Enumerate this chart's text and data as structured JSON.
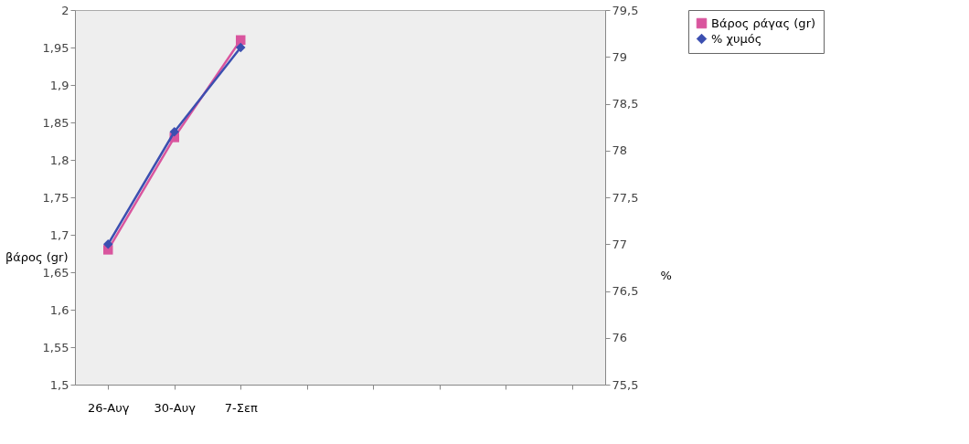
{
  "chart_data": {
    "type": "line",
    "categories": [
      "26-Αυγ",
      "30-Αυγ",
      "7-Σεπ",
      null,
      null,
      null,
      null,
      null
    ],
    "ylabel": "βάρος (gr)",
    "y2label": "%",
    "ylim": [
      1.5,
      2
    ],
    "yticks": [
      {
        "value": 1.5,
        "label": "1,5"
      },
      {
        "value": 1.55,
        "label": "1,55"
      },
      {
        "value": 1.6,
        "label": "1,6"
      },
      {
        "value": 1.65,
        "label": "1,65"
      },
      {
        "value": 1.7,
        "label": "1,7"
      },
      {
        "value": 1.75,
        "label": "1,75"
      },
      {
        "value": 1.8,
        "label": "1,8"
      },
      {
        "value": 1.85,
        "label": "1,85"
      },
      {
        "value": 1.9,
        "label": "1,9"
      },
      {
        "value": 1.95,
        "label": "1,95"
      },
      2
    ],
    "y2lim": [
      75.5,
      79.5
    ],
    "y2ticks": [
      {
        "value": 75.5,
        "label": "75,5"
      },
      76,
      {
        "value": 76.5,
        "label": "76,5"
      },
      77,
      {
        "value": 77.5,
        "label": "77,5"
      },
      78,
      {
        "value": 78.5,
        "label": "78,5"
      },
      79,
      {
        "value": 79.5,
        "label": "79,5"
      }
    ],
    "grid": false,
    "legend": "right",
    "series": [
      {
        "name": "Βάρος ράγας (gr)",
        "color": "#d9559e",
        "marker": "square",
        "values": [
          1.68,
          1.83,
          1.96,
          null,
          null,
          null,
          null,
          null
        ]
      },
      {
        "name": "% χυμός",
        "color": "#3b4fb0",
        "marker": "diamond",
        "axis": "y2",
        "values": [
          77.0,
          78.2,
          79.1,
          null,
          null,
          null,
          null,
          null
        ]
      }
    ]
  }
}
